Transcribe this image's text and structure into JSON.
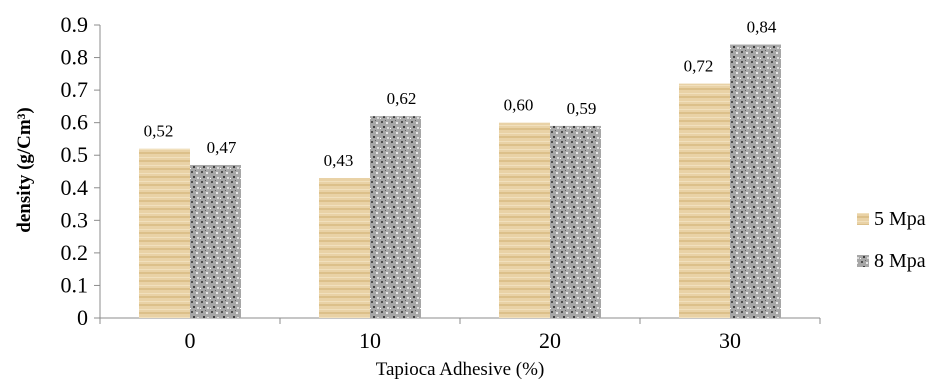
{
  "chart_data": {
    "type": "bar",
    "categories": [
      "0",
      "10",
      "20",
      "30"
    ],
    "series": [
      {
        "name": "5 Mpa",
        "values": [
          0.52,
          0.43,
          0.6,
          0.72
        ],
        "labels": [
          "0,52",
          "0,43",
          "0,60",
          "0,72"
        ],
        "color": "#e8cf9f"
      },
      {
        "name": "8 Mpa",
        "values": [
          0.47,
          0.62,
          0.59,
          0.84
        ],
        "labels": [
          "0,47",
          "0,62",
          "0,59",
          "0,84"
        ],
        "color": "#9a9a9a"
      }
    ],
    "xlabel": "Tapioca Adhesive (%)",
    "ylabel": "density (g/Cm³)",
    "ylim": [
      0,
      0.9
    ],
    "yticks": [
      "0",
      "0.1",
      "0.2",
      "0.3",
      "0.4",
      "0.5",
      "0.6",
      "0.7",
      "0.8",
      "0.9"
    ],
    "grid": false,
    "legend_position": "right"
  }
}
